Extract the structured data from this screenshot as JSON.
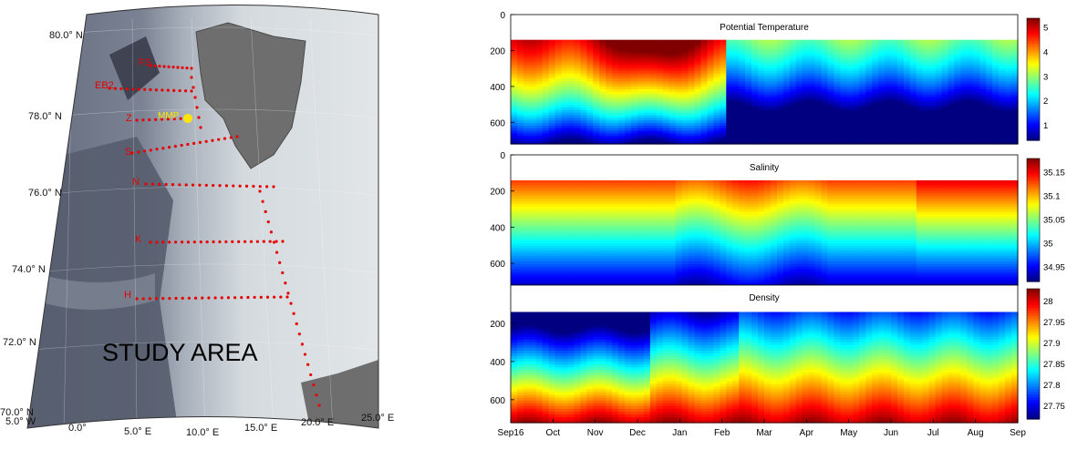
{
  "map": {
    "study_area_label": "STUDY AREA",
    "lat_labels": [
      "80.0° N",
      "78.0° N",
      "76.0° N",
      "74.0° N",
      "72.0° N",
      "70.0° N"
    ],
    "lon_labels": [
      "5.0° W",
      "0.0°",
      "5.0° E",
      "10.0° E",
      "15.0° E",
      "20.0° E",
      "25.0° E"
    ],
    "sections": [
      "FS",
      "EB2",
      "Z",
      "S",
      "N",
      "K",
      "H"
    ],
    "mooring_label": "MMP",
    "colors": {
      "sea_deep": "#5c6273",
      "sea_shelf": "#c7ced5",
      "land": "#6e6e6e",
      "stations": "#e60000",
      "mooring": "#ffe600"
    }
  },
  "chart_data": [
    {
      "type": "heatmap",
      "title": "Potential Temperature",
      "x": [
        "Sep16",
        "Oct",
        "Nov",
        "Dec",
        "Jan",
        "Feb",
        "Mar",
        "Apr",
        "May",
        "Jun",
        "Jul",
        "Aug",
        "Sep"
      ],
      "y_ticks": [
        0,
        200,
        400,
        600
      ],
      "ylim": [
        0,
        720
      ],
      "data_depth_top": 140,
      "colorbar_ticks": [
        1,
        2,
        3,
        4,
        5
      ],
      "clim": [
        0.4,
        5.4
      ],
      "colormap": "jet"
    },
    {
      "type": "heatmap",
      "title": "Salinity",
      "x": [
        "Sep16",
        "Oct",
        "Nov",
        "Dec",
        "Jan",
        "Feb",
        "Mar",
        "Apr",
        "May",
        "Jun",
        "Jul",
        "Aug",
        "Sep"
      ],
      "y_ticks": [
        0,
        200,
        400,
        600
      ],
      "ylim": [
        0,
        720
      ],
      "data_depth_top": 140,
      "colorbar_ticks": [
        34.95,
        35,
        35.05,
        35.1,
        35.15
      ],
      "clim": [
        34.92,
        35.18
      ],
      "colormap": "jet"
    },
    {
      "type": "heatmap",
      "title": "Density",
      "x": [
        "Sep16",
        "Oct",
        "Nov",
        "Dec",
        "Jan",
        "Feb",
        "Mar",
        "Apr",
        "May",
        "Jun",
        "Jul",
        "Aug",
        "Sep"
      ],
      "y_ticks": [
        200,
        400,
        600
      ],
      "ylim": [
        0,
        720
      ],
      "data_depth_top": 140,
      "colorbar_ticks": [
        27.75,
        27.8,
        27.85,
        27.9,
        27.95,
        28
      ],
      "clim": [
        27.72,
        28.03
      ],
      "colormap": "jet"
    }
  ]
}
